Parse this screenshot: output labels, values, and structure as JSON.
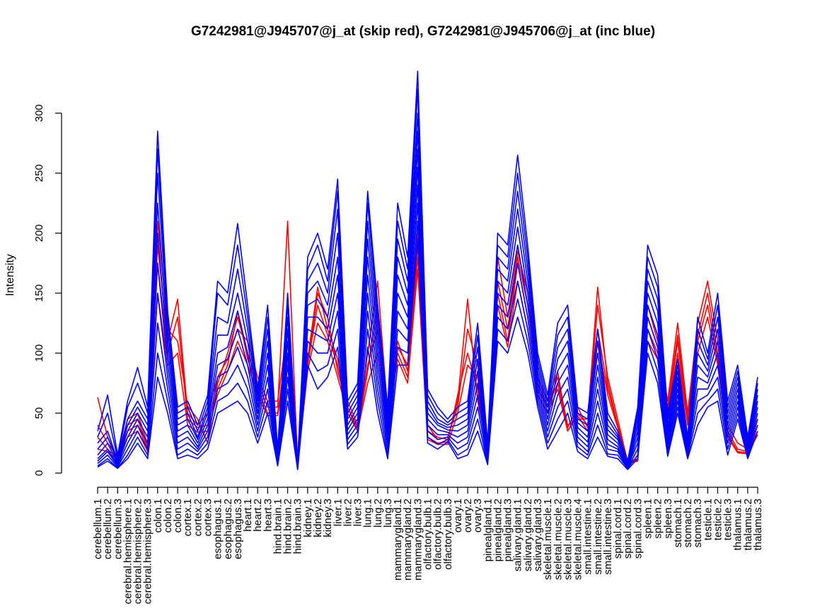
{
  "chart_data": {
    "type": "line",
    "title": "G7242981@J945707@j_at (skip red), G7242981@J945706@j_at (inc blue)",
    "xlabel": "",
    "ylabel": "Intensity",
    "ylim": [
      0,
      300
    ],
    "yticks": [
      0,
      50,
      100,
      150,
      200,
      250,
      300
    ],
    "colors": {
      "skip": "#ff0000",
      "inc": "#0000ff"
    },
    "categories": [
      "cerebellum.1",
      "cerebellum.2",
      "cerebellum.3",
      "cerebral.hemisphere.1",
      "cerebral.hemisphere.2",
      "cerebral.hemisphere.3",
      "colon.1",
      "colon.2",
      "colon.3",
      "cortex.1",
      "cortex.2",
      "cortex.3",
      "esophagus.1",
      "esophagus.2",
      "esophagus.3",
      "heart.1",
      "heart.2",
      "heart.3",
      "hind.brain.1",
      "hind.brain.2",
      "hind.brain.3",
      "kidney.1",
      "kidney.2",
      "kidney.3",
      "liver.1",
      "liver.2",
      "liver.3",
      "lung.1",
      "lung.2",
      "lung.3",
      "mammarygland.1",
      "mammarygland.2",
      "mammarygland.3",
      "olfactory.bulb.1",
      "olfactory.bulb.2",
      "olfactory.bulb.3",
      "ovary.1",
      "ovary.2",
      "ovary.3",
      "pinealgland.1",
      "pinealgland.2",
      "pinealgland.3",
      "salivary.gland.1",
      "salivary.gland.2",
      "salivary.gland.3",
      "skeletal.muscle.1",
      "skeletal.muscle.2",
      "skeletal.muscle.3",
      "skeletal.muscle.4",
      "small.intestine.1",
      "small.intestine.2",
      "small.intestine.3",
      "spinal.cord.1",
      "spinal.cord.2",
      "spinal.cord.3",
      "spleen.1",
      "spleen.2",
      "spleen.3",
      "stomach.1",
      "stomach.2",
      "stomach.3",
      "testicle.1",
      "testicle.2",
      "testicle.3",
      "thalamus.1",
      "thalamus.2",
      "thalamus.3"
    ],
    "series": [
      {
        "name": "skip-1",
        "group": "skip",
        "values": [
          63,
          30,
          12,
          45,
          50,
          24,
          210,
          120,
          110,
          56,
          45,
          25,
          75,
          100,
          130,
          100,
          75,
          55,
          55,
          210,
          8,
          90,
          150,
          130,
          85,
          55,
          35,
          75,
          100,
          35,
          105,
          90,
          200,
          35,
          30,
          28,
          60,
          145,
          60,
          20,
          180,
          130,
          185,
          150,
          75,
          55,
          80,
          40,
          45,
          45,
          155,
          75,
          40,
          10,
          10,
          140,
          110,
          60,
          125,
          50,
          125,
          160,
          110,
          40,
          25,
          20,
          45
        ]
      },
      {
        "name": "skip-2",
        "group": "skip",
        "values": [
          40,
          25,
          14,
          40,
          45,
          22,
          190,
          110,
          145,
          50,
          40,
          50,
          80,
          95,
          120,
          110,
          80,
          60,
          60,
          120,
          10,
          95,
          155,
          120,
          95,
          60,
          40,
          90,
          120,
          45,
          110,
          85,
          180,
          40,
          28,
          30,
          55,
          120,
          90,
          22,
          160,
          120,
          180,
          140,
          80,
          60,
          85,
          35,
          50,
          40,
          140,
          80,
          45,
          9,
          12,
          130,
          105,
          55,
          115,
          45,
          115,
          150,
          100,
          35,
          20,
          18,
          40
        ]
      },
      {
        "name": "skip-3",
        "group": "skip",
        "values": [
          30,
          20,
          12,
          35,
          40,
          20,
          175,
          100,
          130,
          45,
          38,
          40,
          70,
          90,
          135,
          95,
          70,
          50,
          50,
          110,
          9,
          90,
          140,
          115,
          90,
          55,
          38,
          100,
          160,
          50,
          100,
          80,
          190,
          30,
          25,
          26,
          65,
          100,
          70,
          20,
          150,
          110,
          175,
          130,
          70,
          55,
          75,
          38,
          55,
          38,
          120,
          70,
          40,
          9,
          11,
          120,
          100,
          50,
          110,
          42,
          110,
          140,
          95,
          32,
          18,
          17,
          35
        ]
      },
      {
        "name": "skip-4",
        "group": "skip",
        "values": [
          20,
          18,
          11,
          30,
          35,
          18,
          150,
          90,
          100,
          40,
          34,
          35,
          65,
          85,
          110,
          90,
          65,
          48,
          48,
          95,
          8,
          85,
          125,
          110,
          80,
          50,
          35,
          85,
          140,
          45,
          95,
          75,
          170,
          28,
          24,
          24,
          50,
          90,
          80,
          18,
          140,
          105,
          160,
          120,
          65,
          50,
          70,
          35,
          48,
          35,
          110,
          65,
          38,
          8,
          10,
          110,
          95,
          48,
          100,
          40,
          100,
          130,
          90,
          30,
          17,
          16,
          32
        ]
      },
      {
        "name": "inc-1",
        "group": "inc",
        "values": [
          35,
          65,
          15,
          60,
          88,
          55,
          285,
          135,
          55,
          60,
          40,
          65,
          160,
          150,
          208,
          140,
          70,
          140,
          20,
          150,
          10,
          180,
          200,
          170,
          245,
          60,
          75,
          235,
          140,
          55,
          225,
          180,
          335,
          70,
          55,
          45,
          55,
          60,
          125,
          25,
          200,
          190,
          265,
          190,
          100,
          65,
          125,
          140,
          55,
          50,
          120,
          50,
          35,
          10,
          55,
          190,
          165,
          50,
          95,
          30,
          130,
          100,
          150,
          60,
          90,
          30,
          80
        ]
      },
      {
        "name": "inc-2",
        "group": "inc",
        "values": [
          30,
          50,
          12,
          55,
          75,
          50,
          270,
          130,
          50,
          55,
          35,
          60,
          150,
          140,
          190,
          130,
          65,
          130,
          18,
          140,
          9,
          170,
          190,
          160,
          235,
          55,
          70,
          225,
          130,
          50,
          210,
          170,
          320,
          65,
          50,
          42,
          50,
          55,
          115,
          22,
          190,
          180,
          250,
          180,
          95,
          60,
          115,
          130,
          50,
          45,
          110,
          45,
          32,
          9,
          50,
          180,
          155,
          45,
          90,
          28,
          120,
          95,
          140,
          55,
          85,
          28,
          75
        ]
      },
      {
        "name": "inc-3",
        "group": "inc",
        "values": [
          25,
          35,
          10,
          45,
          60,
          45,
          250,
          120,
          45,
          50,
          30,
          55,
          130,
          125,
          170,
          120,
          60,
          120,
          16,
          130,
          8,
          160,
          175,
          150,
          220,
          50,
          65,
          210,
          120,
          45,
          195,
          160,
          300,
          60,
          45,
          40,
          45,
          50,
          105,
          20,
          180,
          170,
          235,
          170,
          90,
          55,
          105,
          120,
          45,
          40,
          100,
          40,
          30,
          8,
          45,
          170,
          145,
          40,
          85,
          26,
          110,
          90,
          130,
          50,
          80,
          26,
          70
        ]
      },
      {
        "name": "inc-4",
        "group": "inc",
        "values": [
          20,
          30,
          9,
          40,
          55,
          40,
          225,
          110,
          40,
          45,
          28,
          50,
          115,
          115,
          150,
          110,
          55,
          110,
          14,
          120,
          7,
          150,
          160,
          140,
          200,
          45,
          60,
          195,
          110,
          40,
          180,
          150,
          285,
          55,
          42,
          38,
          40,
          45,
          95,
          18,
          170,
          160,
          220,
          160,
          85,
          50,
          95,
          110,
          42,
          35,
          90,
          36,
          28,
          7,
          40,
          160,
          135,
          36,
          80,
          24,
          100,
          85,
          120,
          45,
          75,
          24,
          65
        ]
      },
      {
        "name": "inc-5",
        "group": "inc",
        "values": [
          15,
          25,
          8,
          35,
          50,
          35,
          200,
          100,
          35,
          40,
          25,
          45,
          100,
          105,
          135,
          100,
          50,
          100,
          12,
          110,
          6,
          140,
          145,
          130,
          180,
          40,
          55,
          180,
          100,
          35,
          165,
          140,
          270,
          50,
          40,
          36,
          35,
          40,
          85,
          16,
          160,
          150,
          205,
          150,
          80,
          45,
          85,
          100,
          38,
          30,
          80,
          32,
          25,
          6,
          35,
          150,
          125,
          32,
          75,
          22,
          90,
          80,
          110,
          40,
          70,
          22,
          60
        ]
      },
      {
        "name": "inc-6",
        "group": "inc",
        "values": [
          12,
          20,
          7,
          30,
          45,
          30,
          175,
          90,
          30,
          35,
          22,
          40,
          90,
          95,
          120,
          90,
          45,
          90,
          10,
          100,
          5,
          130,
          130,
          120,
          165,
          36,
          50,
          165,
          90,
          30,
          150,
          130,
          255,
          45,
          36,
          34,
          30,
          35,
          75,
          14,
          150,
          140,
          190,
          140,
          75,
          40,
          75,
          90,
          34,
          26,
          70,
          28,
          22,
          5,
          30,
          140,
          115,
          28,
          70,
          20,
          80,
          75,
          100,
          35,
          65,
          20,
          55
        ]
      },
      {
        "name": "inc-7",
        "group": "inc",
        "values": [
          10,
          18,
          6,
          25,
          40,
          25,
          150,
          80,
          25,
          30,
          20,
          35,
          80,
          85,
          105,
          80,
          40,
          80,
          9,
          90,
          4,
          120,
          115,
          110,
          150,
          32,
          45,
          150,
          80,
          25,
          135,
          120,
          240,
          40,
          32,
          32,
          25,
          30,
          65,
          12,
          140,
          130,
          175,
          130,
          70,
          35,
          65,
          80,
          30,
          22,
          60,
          24,
          20,
          5,
          25,
          130,
          105,
          24,
          65,
          18,
          70,
          70,
          90,
          30,
          60,
          18,
          50
        ]
      },
      {
        "name": "inc-8",
        "group": "inc",
        "values": [
          8,
          15,
          5,
          20,
          35,
          20,
          125,
          70,
          20,
          25,
          18,
          30,
          70,
          75,
          90,
          70,
          35,
          70,
          8,
          80,
          4,
          110,
          100,
          100,
          135,
          28,
          40,
          135,
          70,
          20,
          120,
          110,
          225,
          35,
          28,
          30,
          20,
          25,
          55,
          10,
          130,
          120,
          160,
          120,
          65,
          30,
          55,
          70,
          26,
          18,
          50,
          20,
          18,
          4,
          20,
          120,
          95,
          20,
          60,
          16,
          60,
          65,
          80,
          25,
          55,
          16,
          45
        ]
      },
      {
        "name": "inc-9",
        "group": "inc",
        "values": [
          6,
          12,
          4,
          15,
          30,
          15,
          100,
          60,
          15,
          20,
          15,
          25,
          60,
          65,
          75,
          60,
          30,
          60,
          7,
          70,
          3,
          100,
          85,
          90,
          120,
          24,
          35,
          120,
          60,
          15,
          105,
          100,
          210,
          30,
          24,
          28,
          15,
          20,
          45,
          8,
          120,
          110,
          145,
          110,
          60,
          25,
          45,
          60,
          22,
          15,
          40,
          16,
          15,
          4,
          15,
          110,
          85,
          16,
          55,
          14,
          50,
          60,
          70,
          20,
          50,
          14,
          40
        ]
      },
      {
        "name": "inc-10",
        "group": "inc",
        "values": [
          5,
          10,
          4,
          12,
          25,
          12,
          80,
          50,
          12,
          15,
          12,
          20,
          50,
          55,
          60,
          50,
          25,
          50,
          6,
          60,
          3,
          90,
          70,
          80,
          105,
          20,
          30,
          105,
          50,
          12,
          90,
          90,
          195,
          25,
          20,
          26,
          12,
          15,
          35,
          7,
          110,
          100,
          130,
          100,
          55,
          20,
          35,
          50,
          18,
          12,
          30,
          14,
          12,
          3,
          12,
          100,
          75,
          14,
          50,
          12,
          40,
          55,
          60,
          15,
          45,
          12,
          35
        ]
      }
    ]
  }
}
